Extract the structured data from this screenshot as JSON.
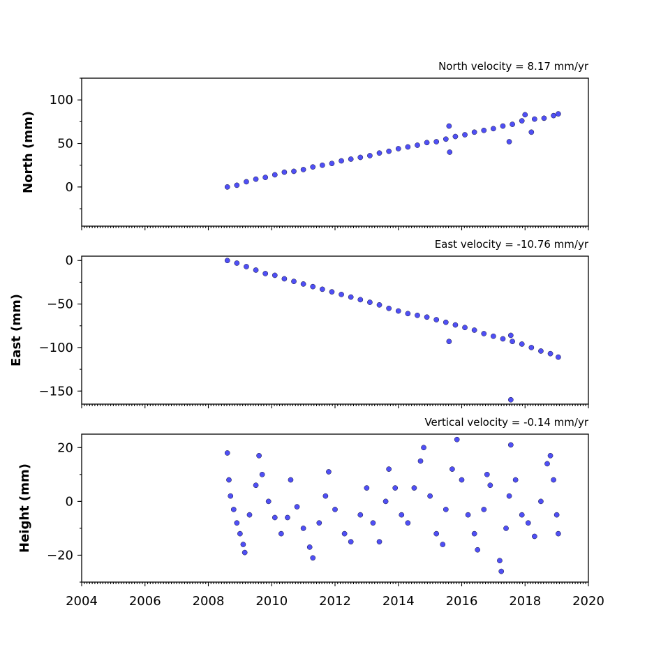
{
  "colors": {
    "marker_fill": "#4f4ff5",
    "marker_edge": "#111133",
    "axes": "#000000"
  },
  "x_axis": {
    "min": 2004,
    "max": 2020,
    "ticks": [
      2004,
      2006,
      2008,
      2010,
      2012,
      2014,
      2016,
      2018,
      2020
    ],
    "tick_labels": [
      "2004",
      "2006",
      "2008",
      "2010",
      "2012",
      "2014",
      "2016",
      "2018",
      "2020"
    ]
  },
  "chart_data": [
    {
      "type": "scatter",
      "title": "North velocity = 8.17 mm/yr",
      "ylabel": "North (mm)",
      "xlim": [
        2004,
        2020
      ],
      "ylim": [
        -45,
        125
      ],
      "yticks": [
        0,
        50,
        100
      ],
      "ytick_labels": [
        "0",
        "50",
        "100"
      ],
      "series": [
        {
          "values": [
            [
              2008.6,
              0
            ],
            [
              2008.9,
              2
            ],
            [
              2009.2,
              6
            ],
            [
              2009.5,
              9
            ],
            [
              2009.8,
              11
            ],
            [
              2010.1,
              14
            ],
            [
              2010.4,
              17
            ],
            [
              2010.7,
              18
            ],
            [
              2011.0,
              20
            ],
            [
              2011.3,
              23
            ],
            [
              2011.6,
              25
            ],
            [
              2011.9,
              27
            ],
            [
              2012.2,
              30
            ],
            [
              2012.5,
              32
            ],
            [
              2012.8,
              34
            ],
            [
              2013.1,
              36
            ],
            [
              2013.4,
              39
            ],
            [
              2013.7,
              41
            ],
            [
              2014.0,
              44
            ],
            [
              2014.3,
              46
            ],
            [
              2014.6,
              48
            ],
            [
              2014.9,
              51
            ],
            [
              2015.2,
              52
            ],
            [
              2015.5,
              55
            ],
            [
              2015.6,
              70
            ],
            [
              2015.62,
              40
            ],
            [
              2015.8,
              58
            ],
            [
              2016.1,
              60
            ],
            [
              2016.4,
              63
            ],
            [
              2016.7,
              65
            ],
            [
              2017.0,
              67
            ],
            [
              2017.3,
              70
            ],
            [
              2017.5,
              52
            ],
            [
              2017.6,
              72
            ],
            [
              2017.9,
              76
            ],
            [
              2018.0,
              83
            ],
            [
              2018.2,
              63
            ],
            [
              2018.3,
              78
            ],
            [
              2018.6,
              79
            ],
            [
              2018.9,
              82
            ],
            [
              2019.05,
              84
            ]
          ]
        }
      ]
    },
    {
      "type": "scatter",
      "title": "East velocity = -10.76 mm/yr",
      "ylabel": "East (mm)",
      "xlim": [
        2004,
        2020
      ],
      "ylim": [
        -165,
        5
      ],
      "yticks": [
        0,
        -50,
        -100,
        -150
      ],
      "ytick_labels": [
        "0",
        "−50",
        "−100",
        "−150"
      ],
      "series": [
        {
          "values": [
            [
              2008.6,
              0
            ],
            [
              2008.9,
              -3
            ],
            [
              2009.2,
              -7
            ],
            [
              2009.5,
              -11
            ],
            [
              2009.8,
              -15
            ],
            [
              2010.1,
              -17
            ],
            [
              2010.4,
              -21
            ],
            [
              2010.7,
              -24
            ],
            [
              2011.0,
              -27
            ],
            [
              2011.3,
              -30
            ],
            [
              2011.6,
              -33
            ],
            [
              2011.9,
              -36
            ],
            [
              2012.2,
              -39
            ],
            [
              2012.5,
              -42
            ],
            [
              2012.8,
              -45
            ],
            [
              2013.1,
              -48
            ],
            [
              2013.4,
              -51
            ],
            [
              2013.7,
              -55
            ],
            [
              2014.0,
              -58
            ],
            [
              2014.3,
              -61
            ],
            [
              2014.6,
              -63
            ],
            [
              2014.9,
              -65
            ],
            [
              2015.2,
              -68
            ],
            [
              2015.5,
              -71
            ],
            [
              2015.6,
              -93
            ],
            [
              2015.8,
              -74
            ],
            [
              2016.1,
              -77
            ],
            [
              2016.4,
              -80
            ],
            [
              2016.7,
              -84
            ],
            [
              2017.0,
              -87
            ],
            [
              2017.3,
              -90
            ],
            [
              2017.55,
              -86
            ],
            [
              2017.6,
              -93
            ],
            [
              2017.55,
              -160
            ],
            [
              2017.9,
              -96
            ],
            [
              2018.2,
              -100
            ],
            [
              2018.5,
              -104
            ],
            [
              2018.8,
              -107
            ],
            [
              2019.05,
              -111
            ]
          ]
        }
      ]
    },
    {
      "type": "scatter",
      "title": "Vertical velocity = -0.14 mm/yr",
      "ylabel": "Height (mm)",
      "xlim": [
        2004,
        2020
      ],
      "ylim": [
        -30,
        25
      ],
      "yticks": [
        20,
        0,
        -20
      ],
      "ytick_labels": [
        "20",
        "0",
        "−20"
      ],
      "series": [
        {
          "values": [
            [
              2008.6,
              18
            ],
            [
              2008.65,
              8
            ],
            [
              2008.7,
              2
            ],
            [
              2008.8,
              -3
            ],
            [
              2008.9,
              -8
            ],
            [
              2009.0,
              -12
            ],
            [
              2009.1,
              -16
            ],
            [
              2009.15,
              -19
            ],
            [
              2009.3,
              -5
            ],
            [
              2009.5,
              6
            ],
            [
              2009.6,
              17
            ],
            [
              2009.7,
              10
            ],
            [
              2009.9,
              0
            ],
            [
              2010.1,
              -6
            ],
            [
              2010.3,
              -12
            ],
            [
              2010.5,
              -6
            ],
            [
              2010.6,
              8
            ],
            [
              2010.8,
              -2
            ],
            [
              2011.0,
              -10
            ],
            [
              2011.2,
              -17
            ],
            [
              2011.3,
              -21
            ],
            [
              2011.5,
              -8
            ],
            [
              2011.7,
              2
            ],
            [
              2011.8,
              11
            ],
            [
              2012.0,
              -3
            ],
            [
              2012.3,
              -12
            ],
            [
              2012.5,
              -15
            ],
            [
              2012.8,
              -5
            ],
            [
              2013.0,
              5
            ],
            [
              2013.2,
              -8
            ],
            [
              2013.4,
              -15
            ],
            [
              2013.6,
              0
            ],
            [
              2013.7,
              12
            ],
            [
              2013.9,
              5
            ],
            [
              2014.1,
              -5
            ],
            [
              2014.3,
              -8
            ],
            [
              2014.5,
              5
            ],
            [
              2014.7,
              15
            ],
            [
              2014.8,
              20
            ],
            [
              2015.0,
              2
            ],
            [
              2015.2,
              -12
            ],
            [
              2015.4,
              -16
            ],
            [
              2015.5,
              -3
            ],
            [
              2015.7,
              12
            ],
            [
              2015.85,
              23
            ],
            [
              2016.0,
              8
            ],
            [
              2016.2,
              -5
            ],
            [
              2016.4,
              -12
            ],
            [
              2016.5,
              -18
            ],
            [
              2016.7,
              -3
            ],
            [
              2016.8,
              10
            ],
            [
              2016.9,
              6
            ],
            [
              2017.2,
              -22
            ],
            [
              2017.25,
              -26
            ],
            [
              2017.4,
              -10
            ],
            [
              2017.5,
              2
            ],
            [
              2017.55,
              21
            ],
            [
              2017.7,
              8
            ],
            [
              2017.9,
              -5
            ],
            [
              2018.1,
              -8
            ],
            [
              2018.3,
              -13
            ],
            [
              2018.5,
              0
            ],
            [
              2018.7,
              14
            ],
            [
              2018.8,
              17
            ],
            [
              2018.9,
              8
            ],
            [
              2019.0,
              -5
            ],
            [
              2019.05,
              -12
            ]
          ]
        }
      ]
    }
  ]
}
